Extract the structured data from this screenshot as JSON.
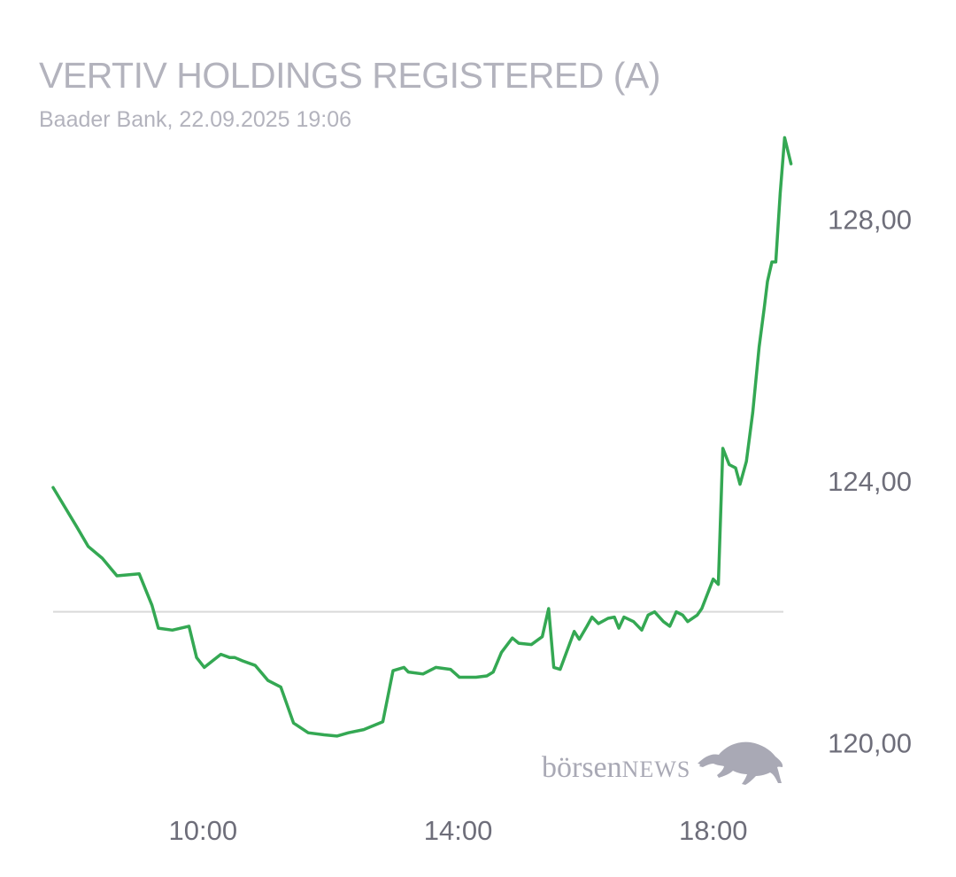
{
  "header": {
    "title": "VERTIV HOLDINGS REGISTERED (A)",
    "subtitle": "Baader Bank, 22.09.2025 19:06"
  },
  "logo": {
    "text_lower": "börsen",
    "text_upper": "NEWS",
    "icon": "bull-icon"
  },
  "colors": {
    "line": "#34a853",
    "reference_line": "#d9d9d9",
    "text": "#b3b3bd",
    "ticks": "#6e6e7a",
    "logo": "#a9a9b5"
  },
  "chart_data": {
    "type": "line",
    "title": "VERTIV HOLDINGS REGISTERED (A)",
    "subtitle": "Baader Bank, 22.09.2025 19:06",
    "x_unit": "hours",
    "x_range": [
      7.65,
      19.1
    ],
    "y_range": [
      119.3,
      130.0
    ],
    "y_ticks": [
      {
        "value": 128,
        "label": "128,00"
      },
      {
        "value": 124,
        "label": "124,00"
      },
      {
        "value": 120,
        "label": "120,00"
      }
    ],
    "x_ticks": [
      {
        "value": 10,
        "label": "10:00"
      },
      {
        "value": 14,
        "label": "14:00"
      },
      {
        "value": 18,
        "label": "18:00"
      }
    ],
    "reference_value": 122.0,
    "grid": false,
    "legend": "none",
    "series": [
      {
        "points": [
          [
            7.65,
            123.9
          ],
          [
            8.02,
            123.3
          ],
          [
            8.2,
            123.0
          ],
          [
            8.42,
            122.82
          ],
          [
            8.65,
            122.55
          ],
          [
            9.0,
            122.58
          ],
          [
            9.2,
            122.1
          ],
          [
            9.3,
            121.75
          ],
          [
            9.52,
            121.72
          ],
          [
            9.78,
            121.78
          ],
          [
            9.9,
            121.3
          ],
          [
            10.02,
            121.15
          ],
          [
            10.15,
            121.25
          ],
          [
            10.28,
            121.35
          ],
          [
            10.42,
            121.3
          ],
          [
            10.5,
            121.3
          ],
          [
            10.62,
            121.25
          ],
          [
            10.82,
            121.18
          ],
          [
            11.02,
            120.95
          ],
          [
            11.22,
            120.85
          ],
          [
            11.42,
            120.3
          ],
          [
            11.65,
            120.15
          ],
          [
            11.9,
            120.12
          ],
          [
            12.1,
            120.1
          ],
          [
            12.28,
            120.15
          ],
          [
            12.52,
            120.2
          ],
          [
            12.82,
            120.32
          ],
          [
            12.98,
            121.1
          ],
          [
            13.15,
            121.15
          ],
          [
            13.22,
            121.08
          ],
          [
            13.45,
            121.05
          ],
          [
            13.65,
            121.15
          ],
          [
            13.88,
            121.12
          ],
          [
            14.02,
            121.0
          ],
          [
            14.28,
            121.0
          ],
          [
            14.45,
            121.02
          ],
          [
            14.55,
            121.08
          ],
          [
            14.68,
            121.38
          ],
          [
            14.85,
            121.6
          ],
          [
            14.95,
            121.52
          ],
          [
            15.15,
            121.5
          ],
          [
            15.32,
            121.62
          ],
          [
            15.42,
            122.05
          ],
          [
            15.5,
            121.15
          ],
          [
            15.6,
            121.12
          ],
          [
            15.82,
            121.7
          ],
          [
            15.9,
            121.58
          ],
          [
            16.02,
            121.78
          ],
          [
            16.1,
            121.92
          ],
          [
            16.2,
            121.82
          ],
          [
            16.35,
            121.9
          ],
          [
            16.45,
            121.92
          ],
          [
            16.52,
            121.75
          ],
          [
            16.6,
            121.92
          ],
          [
            16.75,
            121.85
          ],
          [
            16.88,
            121.72
          ],
          [
            16.98,
            121.95
          ],
          [
            17.08,
            122.0
          ],
          [
            17.22,
            121.85
          ],
          [
            17.32,
            121.78
          ],
          [
            17.42,
            122.0
          ],
          [
            17.52,
            121.95
          ],
          [
            17.6,
            121.85
          ],
          [
            17.75,
            121.95
          ],
          [
            17.82,
            122.05
          ],
          [
            17.92,
            122.3
          ],
          [
            18.0,
            122.5
          ],
          [
            18.08,
            122.42
          ],
          [
            18.15,
            124.5
          ],
          [
            18.25,
            124.25
          ],
          [
            18.35,
            124.2
          ],
          [
            18.42,
            123.95
          ],
          [
            18.52,
            124.3
          ],
          [
            18.62,
            125.05
          ],
          [
            18.72,
            126.05
          ],
          [
            18.8,
            126.65
          ],
          [
            18.85,
            127.05
          ],
          [
            18.92,
            127.35
          ],
          [
            18.98,
            127.35
          ],
          [
            19.05,
            128.4
          ],
          [
            19.12,
            129.25
          ],
          [
            19.22,
            128.85
          ]
        ]
      }
    ]
  }
}
